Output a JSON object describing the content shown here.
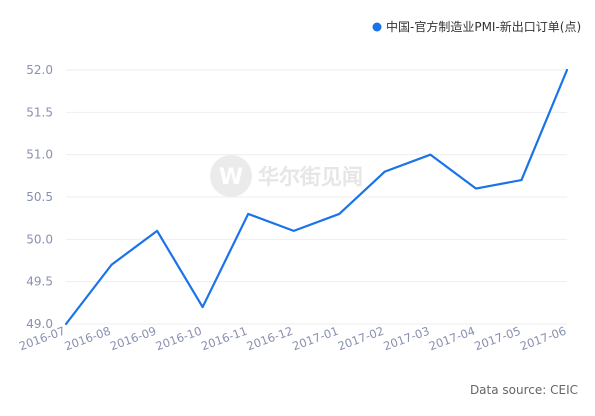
{
  "chart_data": {
    "type": "line",
    "categories": [
      "2016-07",
      "2016-08",
      "2016-09",
      "2016-10",
      "2016-11",
      "2016-12",
      "2017-01",
      "2017-02",
      "2017-03",
      "2017-04",
      "2017-05",
      "2017-06"
    ],
    "series": [
      {
        "name": "中国-官方制造业PMI-新出口订单(点)",
        "values": [
          49.0,
          49.7,
          50.1,
          49.2,
          50.3,
          50.1,
          50.3,
          50.8,
          51.0,
          50.6,
          50.7,
          52.0
        ]
      }
    ],
    "yticks": [
      "49.0",
      "49.5",
      "50.0",
      "50.5",
      "51.0",
      "51.5",
      "52.0"
    ],
    "ylim": [
      49.0,
      52.0
    ],
    "grid": true,
    "legend_position": "top-right",
    "colors": {
      "line": "#1a73e8",
      "grid": "#eeeeee",
      "tick": "#8a90b0"
    }
  },
  "watermark": {
    "text": "华尔街见闻",
    "logo_letter": "W"
  },
  "source": "Data source: CEIC"
}
